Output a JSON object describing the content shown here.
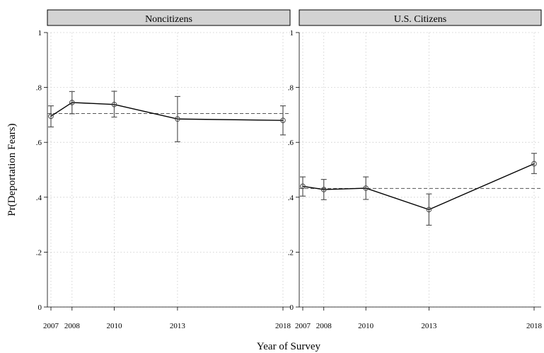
{
  "chart_data": {
    "type": "line",
    "ylabel": "Pr(Deportation Fears)",
    "xlabel": "Year of Survey",
    "x": [
      2007,
      2008,
      2010,
      2013,
      2018
    ],
    "x_tick_labels": [
      "2007",
      "2008",
      "2010",
      "2013",
      "2018"
    ],
    "ylim": [
      0,
      1
    ],
    "y_ticks": [
      0,
      0.2,
      0.4,
      0.6,
      0.8,
      1
    ],
    "y_tick_labels": [
      "0",
      ".2",
      ".4",
      ".6",
      ".8",
      "1"
    ],
    "grid": true,
    "panels": [
      {
        "title": "Noncitizens",
        "values": [
          0.695,
          0.745,
          0.738,
          0.685,
          0.68
        ],
        "ci_low": [
          0.656,
          0.704,
          0.692,
          0.602,
          0.627
        ],
        "ci_high": [
          0.733,
          0.785,
          0.786,
          0.767,
          0.733
        ],
        "reference_line": 0.705
      },
      {
        "title": "U.S. Citizens",
        "values": [
          0.44,
          0.428,
          0.433,
          0.355,
          0.522
        ],
        "ci_low": [
          0.404,
          0.391,
          0.392,
          0.298,
          0.486
        ],
        "ci_high": [
          0.474,
          0.465,
          0.474,
          0.412,
          0.56
        ],
        "reference_line": 0.432
      }
    ]
  },
  "colors": {
    "line": "#000000",
    "error_bar": "#555555",
    "panel_header": "#d3d3d3",
    "grid": "#c8c8c8",
    "reference_line": "#555555"
  }
}
